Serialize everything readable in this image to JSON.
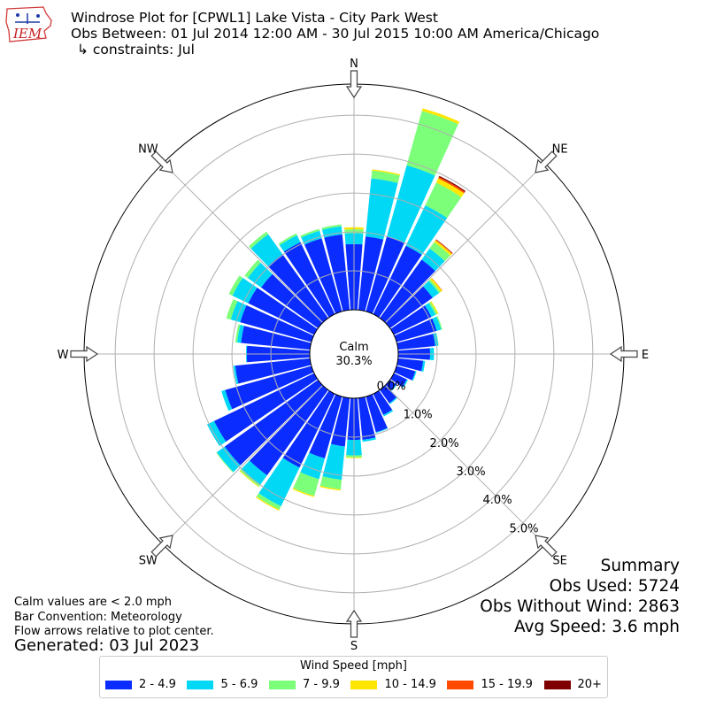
{
  "header": {
    "title_line1": "Windrose Plot for [CPWL1] Lake Vista - City Park West",
    "title_line2": "Obs Between: 01 Jul 2014 12:00 AM - 30 Jul 2015 10:00 AM America/Chicago",
    "title_line3": "↳ constraints: Jul",
    "logo_text": "IEM"
  },
  "notes": {
    "calm_note": "Calm values are < 2.0 mph",
    "bar_convention": "Bar Convention: Meteorology",
    "flow_arrows": "Flow arrows relative to plot center.",
    "generated": "Generated: 03 Jul 2023"
  },
  "summary": {
    "title": "Summary",
    "obs_used": "Obs Used: 5724",
    "obs_without_wind": "Obs Without Wind: 2863",
    "avg_speed": "Avg Speed: 3.6 mph"
  },
  "legend": {
    "title": "Wind Speed [mph]",
    "items": [
      {
        "label": "2 - 4.9",
        "color": "#0a2cff"
      },
      {
        "label": "5 - 6.9",
        "color": "#00d8f5"
      },
      {
        "label": "7 - 9.9",
        "color": "#7cff79"
      },
      {
        "label": "10 - 14.9",
        "color": "#ffe600"
      },
      {
        "label": "15 - 19.9",
        "color": "#ff4a00"
      },
      {
        "label": "20+",
        "color": "#7f0000"
      }
    ]
  },
  "chart_data": {
    "type": "windrose",
    "calm_label": "Calm",
    "calm_value": "30.3%",
    "compass_labels": [
      "N",
      "NE",
      "E",
      "SE",
      "S",
      "SW",
      "W",
      "NW"
    ],
    "radial_tick_labels": [
      "0.0%",
      "1.0%",
      "2.0%",
      "3.0%",
      "4.0%",
      "5.0%"
    ],
    "radial_ticks": [
      0,
      1,
      2,
      3,
      4,
      5
    ],
    "radial_max_percent": 5.8,
    "directions_deg": [
      0,
      10,
      20,
      30,
      40,
      50,
      60,
      70,
      80,
      90,
      100,
      110,
      120,
      130,
      140,
      150,
      160,
      170,
      180,
      190,
      200,
      210,
      220,
      230,
      240,
      250,
      260,
      270,
      280,
      290,
      300,
      310,
      320,
      330,
      340,
      350
    ],
    "series": [
      {
        "name": "2 - 4.9",
        "color": "#0a2cff",
        "values": [
          1.69,
          1.9,
          2.0,
          1.95,
          1.85,
          1.35,
          1.07,
          1.07,
          0.96,
          0.82,
          0.65,
          0.5,
          0.37,
          0.2,
          0.42,
          0.6,
          0.95,
          1.08,
          1.07,
          1.25,
          1.65,
          2.1,
          2.7,
          2.95,
          2.85,
          2.3,
          1.93,
          1.62,
          1.78,
          1.9,
          1.88,
          1.8,
          2.02,
          2.05,
          1.95,
          1.95
        ]
      },
      {
        "name": "5 - 6.9",
        "color": "#00d8f5",
        "values": [
          0.28,
          1.5,
          1.9,
          1.15,
          0.35,
          0.2,
          0.12,
          0.12,
          0.08,
          0.1,
          0.05,
          0.03,
          0.03,
          0.02,
          0.03,
          0.04,
          0.02,
          0.05,
          0.4,
          0.86,
          0.55,
          1.1,
          0.3,
          0.25,
          0.2,
          0.1,
          0.05,
          0.02,
          0.1,
          0.25,
          0.45,
          0.42,
          0.63,
          0.2,
          0.2,
          0.21
        ]
      },
      {
        "name": "7 - 9.9",
        "color": "#7cff79",
        "values": [
          0.1,
          0.2,
          1.45,
          0.65,
          0.2,
          0.05,
          0.05,
          0.03,
          0.01,
          0.0,
          0.0,
          0.0,
          0.0,
          0.0,
          0.0,
          0.0,
          0.0,
          0.0,
          0.05,
          0.25,
          0.45,
          0.1,
          0.05,
          0.02,
          0.0,
          0.0,
          0.0,
          0.0,
          0.05,
          0.12,
          0.1,
          0.1,
          0.08,
          0.05,
          0.05,
          0.05
        ]
      },
      {
        "name": "10 - 14.9",
        "color": "#ffe600",
        "values": [
          0.05,
          0.03,
          0.07,
          0.12,
          0.06,
          0.05,
          0.03,
          0.0,
          0.0,
          0.0,
          0.0,
          0.0,
          0.0,
          0.0,
          0.0,
          0.0,
          0.0,
          0.0,
          0.02,
          0.03,
          0.03,
          0.03,
          0.02,
          0.0,
          0.0,
          0.0,
          0.0,
          0.0,
          0.0,
          0.0,
          0.0,
          0.0,
          0.0,
          0.0,
          0.0,
          0.0
        ]
      },
      {
        "name": "15 - 19.9",
        "color": "#ff4a00",
        "values": [
          0,
          0,
          0,
          0.04,
          0.02,
          0.01,
          0,
          0,
          0,
          0,
          0,
          0,
          0,
          0,
          0,
          0,
          0,
          0,
          0,
          0,
          0,
          0,
          0,
          0,
          0,
          0,
          0,
          0,
          0,
          0,
          0,
          0,
          0,
          0,
          0,
          0
        ]
      },
      {
        "name": "20+",
        "color": "#7f0000",
        "values": [
          0,
          0,
          0,
          0.03,
          0.01,
          0,
          0,
          0,
          0,
          0,
          0,
          0,
          0,
          0,
          0,
          0,
          0,
          0,
          0,
          0,
          0,
          0,
          0,
          0,
          0,
          0,
          0,
          0,
          0,
          0,
          0,
          0,
          0,
          0,
          0,
          0
        ]
      }
    ]
  }
}
